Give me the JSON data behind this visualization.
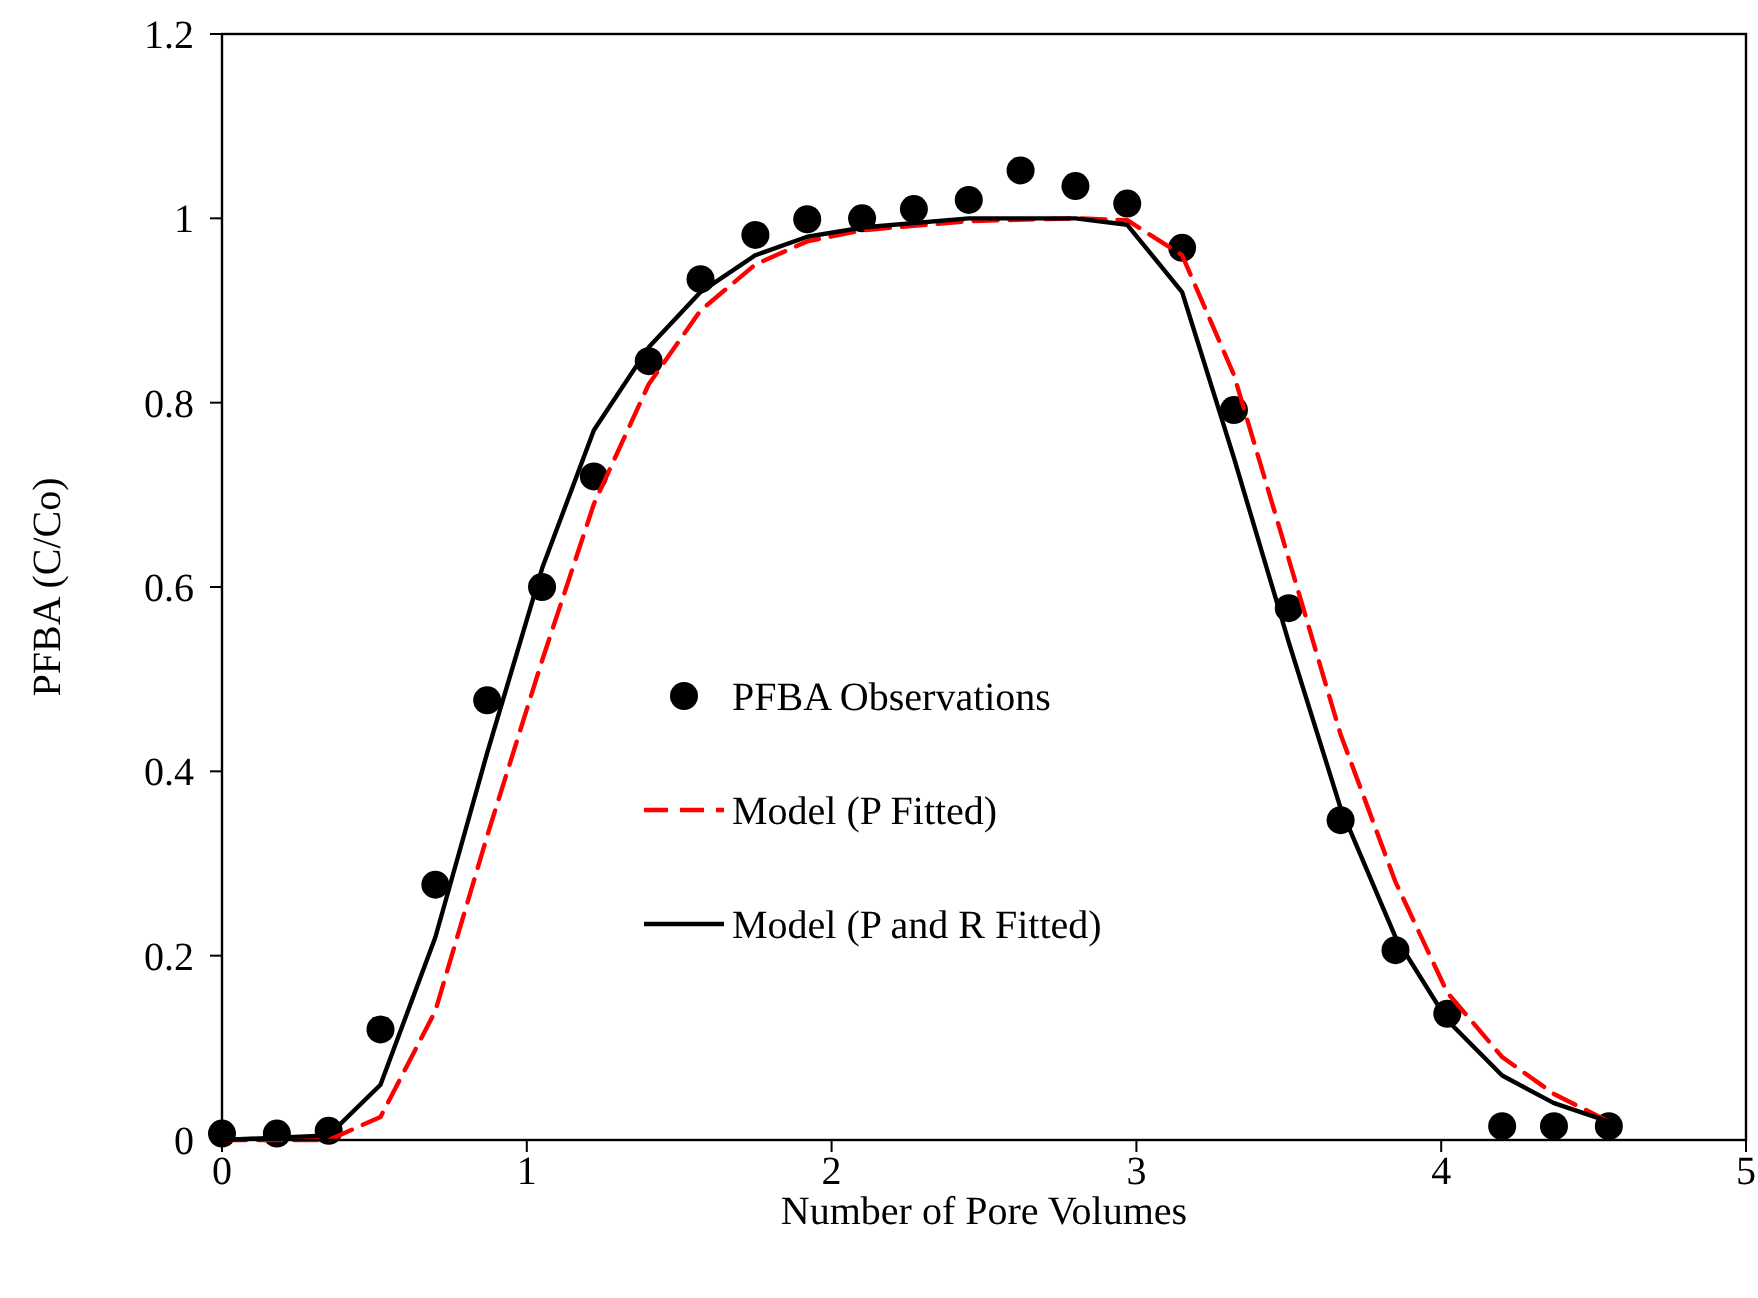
{
  "chart_data": {
    "type": "line",
    "xlabel": "Number of Pore Volumes",
    "ylabel": "PFBA (C/Co)",
    "xlim": [
      0,
      5
    ],
    "ylim": [
      0,
      1.2
    ],
    "xticks": [
      0,
      1,
      2,
      3,
      4,
      5
    ],
    "yticks": [
      0,
      0.2,
      0.4,
      0.6,
      0.8,
      1,
      1.2
    ],
    "grid": false,
    "legend": "left",
    "series": [
      {
        "name": "PFBA Observations",
        "type": "scatter",
        "marker": "circle",
        "color": "#000000",
        "x": [
          0,
          0.18,
          0.35,
          0.52,
          0.7,
          0.87,
          1.05,
          1.22,
          1.4,
          1.57,
          1.75,
          1.92,
          2.1,
          2.27,
          2.45,
          2.62,
          2.8,
          2.97,
          3.15,
          3.32,
          3.5,
          3.67,
          3.85,
          4.02,
          4.2,
          4.37,
          4.55
        ],
        "values": [
          0.007,
          0.007,
          0.01,
          0.12,
          0.277,
          0.477,
          0.6,
          0.72,
          0.845,
          0.934,
          0.982,
          0.999,
          1.0,
          1.01,
          1.02,
          1.052,
          1.035,
          1.016,
          0.968,
          0.792,
          0.577,
          0.347,
          0.206,
          0.137,
          0.015,
          0.015,
          0.015
        ]
      },
      {
        "name": "Model (P Fitted)",
        "line_style": "dashed",
        "color": "#ff0000",
        "x": [
          0,
          0.35,
          0.52,
          0.7,
          0.87,
          1.05,
          1.22,
          1.4,
          1.57,
          1.75,
          1.92,
          2.1,
          2.45,
          2.8,
          2.97,
          3.15,
          3.32,
          3.5,
          3.67,
          3.85,
          4.02,
          4.2,
          4.37,
          4.55
        ],
        "values": [
          0,
          0,
          0.025,
          0.14,
          0.33,
          0.52,
          0.69,
          0.82,
          0.9,
          0.95,
          0.975,
          0.987,
          0.997,
          1.0,
          0.998,
          0.96,
          0.83,
          0.63,
          0.44,
          0.28,
          0.16,
          0.09,
          0.05,
          0.02
        ]
      },
      {
        "name": "Model (P and R Fitted)",
        "line_style": "solid",
        "color": "#000000",
        "x": [
          0,
          0.35,
          0.52,
          0.7,
          0.87,
          1.05,
          1.22,
          1.4,
          1.57,
          1.75,
          1.92,
          2.1,
          2.45,
          2.8,
          2.97,
          3.15,
          3.32,
          3.5,
          3.67,
          3.85,
          4.02,
          4.2,
          4.37,
          4.55
        ],
        "values": [
          0,
          0.005,
          0.06,
          0.22,
          0.42,
          0.62,
          0.77,
          0.86,
          0.92,
          0.96,
          0.98,
          0.99,
          1.0,
          1.0,
          0.993,
          0.92,
          0.74,
          0.54,
          0.36,
          0.22,
          0.13,
          0.07,
          0.04,
          0.02
        ]
      }
    ]
  }
}
